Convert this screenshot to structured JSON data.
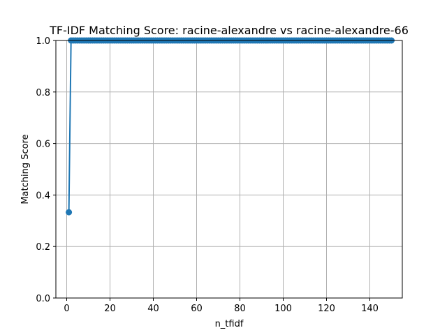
{
  "chart_data": {
    "type": "line",
    "title": "TF-IDF Matching Score: racine-alexandre vs racine-alexandre-66",
    "xlabel": "n_tfidf",
    "ylabel": "Matching Score",
    "xlim": [
      -5,
      155
    ],
    "ylim": [
      0.0,
      1.0
    ],
    "x_ticks": [
      0,
      20,
      40,
      60,
      80,
      100,
      120,
      140
    ],
    "x_tick_labels": [
      "0",
      "20",
      "40",
      "60",
      "80",
      "100",
      "120",
      "140"
    ],
    "y_ticks": [
      0.0,
      0.2,
      0.4,
      0.6,
      0.8,
      1.0
    ],
    "y_tick_labels": [
      "0.0",
      "0.2",
      "0.4",
      "0.6",
      "0.8",
      "1.0"
    ],
    "grid": true,
    "marker": "circle",
    "series": [
      {
        "color": "#1f77b4",
        "x_start": 1,
        "x_end": 150,
        "first_value": 0.333,
        "remaining_value": 1.0
      }
    ]
  }
}
